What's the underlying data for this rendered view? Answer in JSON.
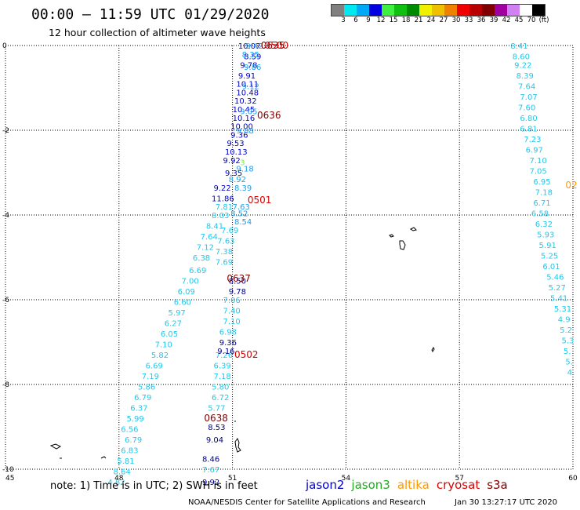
{
  "header": {
    "title": "00:00 – 11:59 UTC 01/29/2020",
    "subtitle": "12 hour collection of altimeter wave heights"
  },
  "legend": {
    "colors": [
      "#808080",
      "#00e8f0",
      "#00a8f8",
      "#0000e0",
      "#40f040",
      "#10c010",
      "#008a00",
      "#f0f000",
      "#f0c000",
      "#f08000",
      "#f00000",
      "#b80000",
      "#800000",
      "#a000a0",
      "#d080f0",
      "#ffffff",
      "#000000"
    ],
    "labels": [
      "3",
      "6",
      "9",
      "12",
      "15",
      "18",
      "21",
      "24",
      "27",
      "30",
      "33",
      "36",
      "39",
      "42",
      "45",
      "70",
      "(ft)"
    ]
  },
  "map": {
    "x_ticks": [
      "45",
      "48",
      "51",
      "54",
      "57",
      "60"
    ],
    "y_ticks": [
      "0",
      "-2",
      "-4",
      "-6",
      "-8",
      "-10"
    ],
    "colors": {
      "jason2": "#0000cc",
      "jason3": "#22aa22",
      "altika": "#ff9900",
      "cryosat": "#dd0000",
      "s3a": "#800000",
      "light": "#20c8ec",
      "mid": "#1aa0f0",
      "navy": "#000088",
      "green": "#88ee44"
    },
    "time_labels": [
      {
        "text": "0635",
        "sat": "s3a",
        "lon": 51.75,
        "lat": 0.0
      },
      {
        "text": "0500",
        "sat": "cryosat",
        "lon": 51.85,
        "lat": 0.0
      },
      {
        "text": "0636",
        "sat": "s3a",
        "lon": 51.65,
        "lat": -1.65
      },
      {
        "text": "0501",
        "sat": "cryosat",
        "lon": 51.4,
        "lat": -3.65
      },
      {
        "text": "0637",
        "sat": "s3a",
        "lon": 50.85,
        "lat": -5.5
      },
      {
        "text": "0502",
        "sat": "cryosat",
        "lon": 51.05,
        "lat": -7.3
      },
      {
        "text": "0638",
        "sat": "s3a",
        "lon": 50.25,
        "lat": -8.8
      },
      {
        "text": "02",
        "sat": "altika",
        "lon": 59.8,
        "lat": -3.3
      }
    ],
    "tracks": [
      {
        "name": "east-pass",
        "color": "light",
        "points": [
          [
            "8.41",
            58.35,
            0.0
          ],
          [
            "8.60",
            58.4,
            -0.25
          ],
          [
            "9.22",
            58.45,
            -0.45
          ],
          [
            "8.39",
            58.5,
            -0.7
          ],
          [
            "7.64",
            58.55,
            -0.95
          ],
          [
            "7.07",
            58.6,
            -1.2
          ],
          [
            "7.60",
            58.55,
            -1.45
          ],
          [
            "6.80",
            58.6,
            -1.7
          ],
          [
            "6.81",
            58.6,
            -1.95
          ],
          [
            "7.23",
            58.7,
            -2.2
          ],
          [
            "6.97",
            58.75,
            -2.45
          ],
          [
            "7.10",
            58.85,
            -2.7
          ],
          [
            "7.05",
            58.85,
            -2.95
          ],
          [
            "6.95",
            58.95,
            -3.2
          ],
          [
            "7.18",
            59.0,
            -3.45
          ],
          [
            "6.71",
            58.95,
            -3.7
          ],
          [
            "6.58",
            58.9,
            -3.95
          ],
          [
            "6.32",
            59.0,
            -4.2
          ],
          [
            "5.93",
            59.05,
            -4.45
          ],
          [
            "5.91",
            59.1,
            -4.7
          ],
          [
            "5.25",
            59.15,
            -4.95
          ],
          [
            "6.01",
            59.2,
            -5.2
          ],
          [
            "5.46",
            59.3,
            -5.45
          ],
          [
            "5.27",
            59.35,
            -5.7
          ],
          [
            "5.41",
            59.4,
            -5.95
          ],
          [
            "5.31",
            59.5,
            -6.2
          ],
          [
            "4.9",
            59.6,
            -6.45
          ],
          [
            "5.2",
            59.65,
            -6.7
          ],
          [
            "5.3",
            59.7,
            -6.95
          ],
          [
            "5.",
            59.75,
            -7.2
          ],
          [
            "5.",
            59.8,
            -7.45
          ],
          [
            "4.",
            59.85,
            -7.7
          ]
        ]
      },
      {
        "name": "upper-cluster",
        "color": "jason2",
        "points": [
          [
            "10.07",
            51.15,
            0.0
          ],
          [
            "8.59",
            51.3,
            -0.25
          ],
          [
            "9.78",
            51.2,
            -0.45
          ],
          [
            "9.91",
            51.15,
            -0.7
          ],
          [
            "10.11",
            51.1,
            -0.9
          ],
          [
            "10.48",
            51.1,
            -1.1
          ],
          [
            "10.32",
            51.05,
            -1.3
          ],
          [
            "10.45",
            51.0,
            -1.5
          ],
          [
            "10.16",
            51.0,
            -1.7
          ],
          [
            "10.00",
            50.95,
            -1.9
          ],
          [
            "9.36",
            50.95,
            -2.1
          ],
          [
            "9.53",
            50.85,
            -2.3
          ],
          [
            "10.13",
            50.8,
            -2.5
          ],
          [
            "9.92",
            50.75,
            -2.7
          ],
          [
            "9.35",
            50.8,
            -3.0
          ],
          [
            "9.22",
            50.5,
            -3.35
          ],
          [
            "11.86",
            50.45,
            -3.6
          ]
        ]
      },
      {
        "name": "upper-cluster-b",
        "color": "mid",
        "points": [
          [
            "9.42",
            51.35,
            0.0
          ],
          [
            "8.35",
            51.25,
            -0.2
          ],
          [
            "9.86",
            51.3,
            -0.5
          ],
          [
            "9.12",
            51.25,
            -0.95
          ],
          [
            "9.05",
            51.2,
            -1.55
          ],
          [
            "9.88",
            51.1,
            -2.0
          ],
          [
            "9.18",
            51.1,
            -2.9
          ],
          [
            "8.92",
            50.9,
            -3.15
          ],
          [
            "8.39",
            51.05,
            -3.35
          ],
          [
            "7.63",
            51.0,
            -3.8
          ],
          [
            "8.52",
            50.95,
            -3.95
          ],
          [
            "8.54",
            51.05,
            -4.15
          ]
        ]
      },
      {
        "name": "green-bits",
        "color": "green",
        "points": [
          [
            "3",
            51.2,
            -2.75
          ]
        ]
      },
      {
        "name": "mid-track",
        "color": "light",
        "points": [
          [
            "7.81",
            50.55,
            -3.8
          ],
          [
            "8.03",
            50.45,
            -4.0
          ],
          [
            "8.41",
            50.3,
            -4.25
          ],
          [
            "7.69",
            50.7,
            -4.35
          ],
          [
            "7.64",
            50.15,
            -4.5
          ],
          [
            "7.63",
            50.6,
            -4.6
          ],
          [
            "7.12",
            50.05,
            -4.75
          ],
          [
            "7.38",
            50.55,
            -4.85
          ],
          [
            "6.38",
            49.95,
            -5.0
          ],
          [
            "7.69",
            50.55,
            -5.1
          ],
          [
            "6.69",
            49.85,
            -5.3
          ],
          [
            "7.00",
            49.65,
            -5.55
          ],
          [
            "6.09",
            49.55,
            -5.8
          ],
          [
            "6.60",
            49.45,
            -6.05
          ],
          [
            "5.97",
            49.3,
            -6.3
          ],
          [
            "6.27",
            49.2,
            -6.55
          ],
          [
            "6.05",
            49.1,
            -6.8
          ],
          [
            "7.10",
            48.95,
            -7.05
          ],
          [
            "5.82",
            48.85,
            -7.3
          ],
          [
            "6.69",
            48.7,
            -7.55
          ],
          [
            "7.19",
            48.6,
            -7.8
          ],
          [
            "5.86",
            48.5,
            -8.05
          ],
          [
            "6.79",
            48.4,
            -8.3
          ],
          [
            "6.37",
            48.3,
            -8.55
          ],
          [
            "5.99",
            48.2,
            -8.8
          ],
          [
            "6.56",
            48.05,
            -9.05
          ],
          [
            "6.79",
            48.15,
            -9.3
          ],
          [
            "6.83",
            48.05,
            -9.55
          ],
          [
            "5.81",
            47.95,
            -9.8
          ],
          [
            "8.64",
            47.85,
            -10.05
          ],
          [
            "4.82",
            47.7,
            -10.3
          ]
        ]
      },
      {
        "name": "lower-track",
        "color": "light",
        "points": [
          [
            "7.40",
            50.75,
            -6.25
          ],
          [
            "7.06",
            50.75,
            -6.0
          ],
          [
            "7.10",
            50.75,
            -6.5
          ],
          [
            "6.98",
            50.65,
            -6.75
          ],
          [
            "7.26",
            50.55,
            -7.3
          ],
          [
            "6.39",
            50.5,
            -7.55
          ],
          [
            "7.18",
            50.5,
            -7.8
          ],
          [
            "5.80",
            50.45,
            -8.05
          ],
          [
            "6.72",
            50.45,
            -8.3
          ],
          [
            "5.77",
            50.35,
            -8.55
          ],
          [
            "7.67",
            50.2,
            -10.0
          ]
        ]
      },
      {
        "name": "lower-track-b",
        "color": "navy",
        "points": [
          [
            "8.50",
            50.9,
            -5.55
          ],
          [
            "9.78",
            50.9,
            -5.8
          ],
          [
            "9.36",
            50.65,
            -7.0
          ],
          [
            "9.16",
            50.6,
            -7.2
          ],
          [
            "8.53",
            50.35,
            -9.0
          ],
          [
            "9.04",
            50.3,
            -9.3
          ],
          [
            "8.46",
            50.2,
            -9.75
          ],
          [
            "9.92",
            50.2,
            -10.3
          ]
        ]
      }
    ]
  },
  "footer": {
    "note": "note:  1) Time is in UTC; 2) SWH is in feet",
    "sats": [
      {
        "name": "jason2",
        "color": "#0000cc"
      },
      {
        "name": "jason3",
        "color": "#22aa22"
      },
      {
        "name": "altika",
        "color": "#ff9900"
      },
      {
        "name": "cryosat",
        "color": "#dd0000"
      },
      {
        "name": "s3a",
        "color": "#800000"
      }
    ],
    "credit": "NOAA/NESDIS Center for Satellite Applications and Research",
    "timestamp": "Jan 30 13:27:17 UTC 2020"
  }
}
